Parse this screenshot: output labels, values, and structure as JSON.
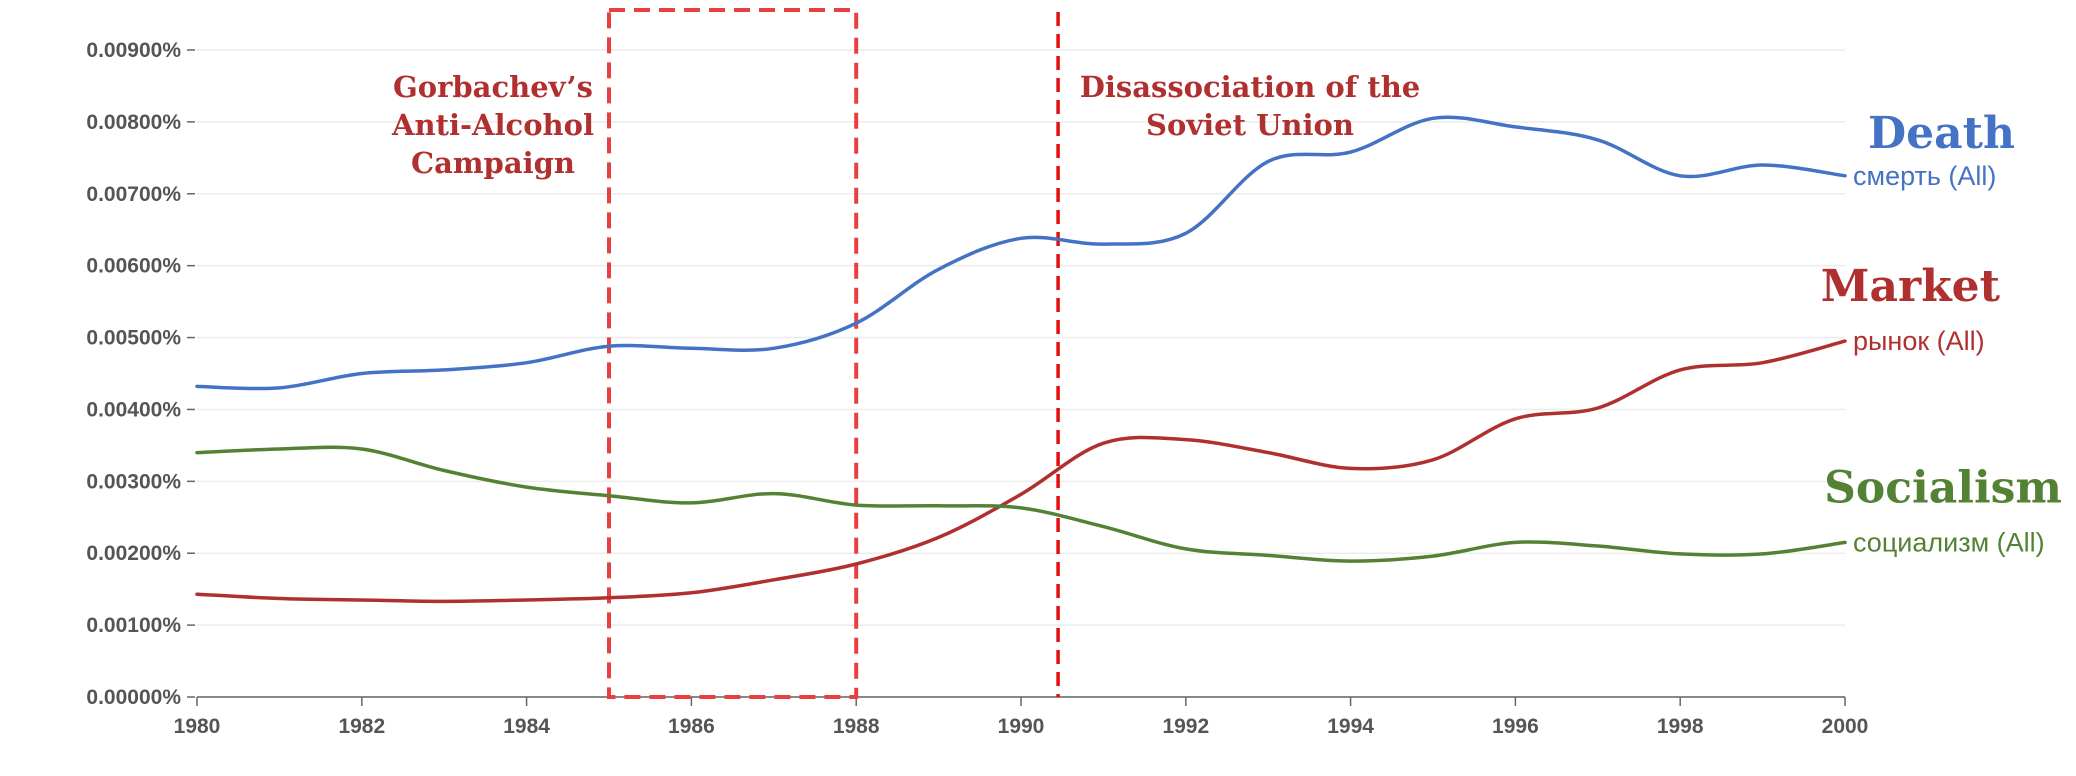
{
  "chart_data": {
    "type": "line",
    "x_range": [
      1980,
      2000
    ],
    "y_range": [
      0,
      0.009
    ],
    "x_ticks": [
      1980,
      1982,
      1984,
      1986,
      1988,
      1990,
      1992,
      1994,
      1996,
      1998,
      2000
    ],
    "x_tick_labels": [
      "1980",
      "1982",
      "1984",
      "1986",
      "1988",
      "1990",
      "1992",
      "1994",
      "1996",
      "1998",
      "2000"
    ],
    "y_ticks": [
      0,
      0.001,
      0.002,
      0.003,
      0.004,
      0.005,
      0.006,
      0.007,
      0.008,
      0.009
    ],
    "y_tick_labels": [
      "0.00000%",
      "0.00100%",
      "0.00200%",
      "0.00300%",
      "0.00400%",
      "0.00500%",
      "0.00600%",
      "0.00700%",
      "0.00800%",
      "0.00900%"
    ],
    "grid": "horizontal",
    "series": [
      {
        "name": "Death",
        "term": "смерть (All)",
        "color": "#4472c4",
        "points": [
          [
            1980,
            0.00432
          ],
          [
            1981,
            0.0043
          ],
          [
            1982,
            0.0045
          ],
          [
            1983,
            0.00455
          ],
          [
            1984,
            0.00465
          ],
          [
            1985,
            0.00488
          ],
          [
            1986,
            0.00485
          ],
          [
            1987,
            0.00485
          ],
          [
            1988,
            0.0052
          ],
          [
            1989,
            0.00595
          ],
          [
            1990,
            0.00638
          ],
          [
            1991,
            0.0063
          ],
          [
            1992,
            0.00645
          ],
          [
            1993,
            0.00745
          ],
          [
            1994,
            0.00758
          ],
          [
            1995,
            0.00805
          ],
          [
            1996,
            0.00793
          ],
          [
            1997,
            0.00775
          ],
          [
            1998,
            0.00725
          ],
          [
            1999,
            0.0074
          ],
          [
            2000,
            0.00725
          ]
        ]
      },
      {
        "name": "Market",
        "term": "рынок (All)",
        "color": "#b03030",
        "points": [
          [
            1980,
            0.00143
          ],
          [
            1981,
            0.00137
          ],
          [
            1982,
            0.00135
          ],
          [
            1983,
            0.00133
          ],
          [
            1984,
            0.00135
          ],
          [
            1985,
            0.00138
          ],
          [
            1986,
            0.00145
          ],
          [
            1987,
            0.00163
          ],
          [
            1988,
            0.00185
          ],
          [
            1989,
            0.00222
          ],
          [
            1990,
            0.00282
          ],
          [
            1991,
            0.00353
          ],
          [
            1992,
            0.00358
          ],
          [
            1993,
            0.0034
          ],
          [
            1994,
            0.00318
          ],
          [
            1995,
            0.0033
          ],
          [
            1996,
            0.00387
          ],
          [
            1997,
            0.00402
          ],
          [
            1998,
            0.00455
          ],
          [
            1999,
            0.00465
          ],
          [
            2000,
            0.00495
          ]
        ]
      },
      {
        "name": "Socialism",
        "term": "социализм (All)",
        "color": "#548235",
        "points": [
          [
            1980,
            0.0034
          ],
          [
            1981,
            0.00345
          ],
          [
            1982,
            0.00345
          ],
          [
            1983,
            0.00315
          ],
          [
            1984,
            0.00292
          ],
          [
            1985,
            0.0028
          ],
          [
            1986,
            0.0027
          ],
          [
            1987,
            0.00283
          ],
          [
            1988,
            0.00267
          ],
          [
            1989,
            0.00266
          ],
          [
            1990,
            0.00263
          ],
          [
            1991,
            0.00237
          ],
          [
            1992,
            0.00206
          ],
          [
            1993,
            0.00197
          ],
          [
            1994,
            0.00189
          ],
          [
            1995,
            0.00196
          ],
          [
            1996,
            0.00215
          ],
          [
            1997,
            0.0021
          ],
          [
            1998,
            0.00199
          ],
          [
            1999,
            0.00199
          ],
          [
            2000,
            0.00215
          ]
        ]
      }
    ],
    "annotations": [
      {
        "type": "box",
        "label": "Gorbachev’s Anti-Alcohol Campaign",
        "label_lines": [
          "Gorbachev’s",
          "Anti-Alcohol",
          "Campaign"
        ],
        "x_start": 1985,
        "x_end": 1988,
        "color": "#e84040"
      },
      {
        "type": "vline",
        "label": "Disassociation of the Soviet Union",
        "label_lines": [
          "Disassociation of the",
          "Soviet Union"
        ],
        "x": 1990.45,
        "color": "#e01010"
      }
    ]
  }
}
